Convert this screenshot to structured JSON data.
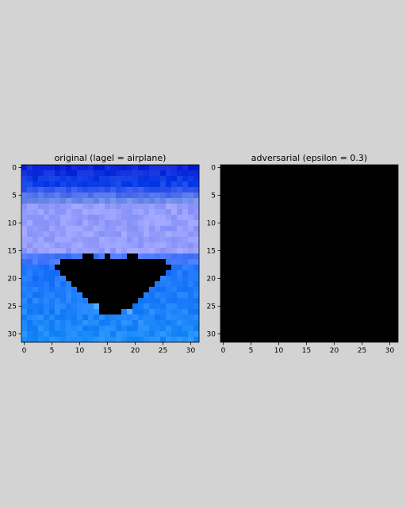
{
  "chart_data": [
    {
      "type": "image",
      "title": "original (lagel = airplane)",
      "xticks": [
        0,
        5,
        10,
        15,
        20,
        25,
        30
      ],
      "yticks": [
        0,
        5,
        10,
        15,
        20,
        25,
        30
      ],
      "xlim": [
        -0.5,
        31.5
      ],
      "ylim": [
        31.5,
        -0.5
      ],
      "image_size": [
        32,
        32
      ],
      "content": "blue sky with dark airplane silhouette",
      "colors": {
        "sky_top": "#0a2ae0",
        "sky_light": "#9aa2ff",
        "sky_mid": "#1e74ff",
        "silhouette": "#000000"
      }
    },
    {
      "type": "image",
      "title": "adversarial (epsilon = 0.3)",
      "xticks": [
        0,
        5,
        10,
        15,
        20,
        25,
        30
      ],
      "yticks": [
        0,
        5,
        10,
        15,
        20,
        25,
        30
      ],
      "xlim": [
        -0.5,
        31.5
      ],
      "ylim": [
        31.5,
        -0.5
      ],
      "image_size": [
        32,
        32
      ],
      "content": "all black",
      "colors": {
        "fill": "#000000"
      }
    }
  ]
}
